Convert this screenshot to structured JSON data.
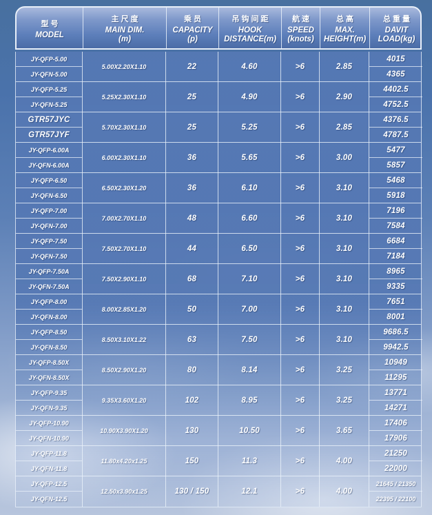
{
  "colors": {
    "header_gradient_top": "#a8b9dd",
    "header_gradient_bottom": "#4b6ca6",
    "body_cell_blue": "#5578b4",
    "grid_line": "#e9f0f9",
    "text": "#ffffff"
  },
  "table": {
    "columns": [
      {
        "zh": "型号",
        "en": [
          "MODEL"
        ]
      },
      {
        "zh": "主尺度",
        "en": [
          "MAIN DIM.",
          "(m)"
        ]
      },
      {
        "zh": "乘员",
        "en": [
          "CAPACITY",
          "(p)"
        ]
      },
      {
        "zh": "吊钩间距",
        "en": [
          "HOOK",
          "DISTANCE(m)"
        ]
      },
      {
        "zh": "航速",
        "en": [
          "SPEED",
          "(knots)"
        ]
      },
      {
        "zh": "总高",
        "en": [
          "MAX.",
          "HEIGHT(m)"
        ]
      },
      {
        "zh": "总重量",
        "en": [
          "DAVIT",
          "LOAD(kg)"
        ]
      }
    ],
    "groups": [
      {
        "models": [
          "JY-QFP-5.00",
          "JY-QFN-5.00"
        ],
        "main_dim": "5.00X2.20X1.10",
        "capacity": "22",
        "hook": "4.60",
        "speed": ">6",
        "height": "2.85",
        "loads": [
          "4015",
          "4365"
        ]
      },
      {
        "models": [
          "JY-QFP-5.25",
          "JY-QFN-5.25"
        ],
        "main_dim": "5.25X2.30X1.10",
        "capacity": "25",
        "hook": "4.90",
        "speed": ">6",
        "height": "2.90",
        "loads": [
          "4402.5",
          "4752.5"
        ]
      },
      {
        "models": [
          "GTR57JYC",
          "GTR57JYF"
        ],
        "main_dim": "5.70X2.30X1.10",
        "capacity": "25",
        "hook": "5.25",
        "speed": ">6",
        "height": "2.85",
        "loads": [
          "4376.5",
          "4787.5"
        ]
      },
      {
        "models": [
          "JY-QFP-6.00A",
          "JY-QFN-6.00A"
        ],
        "main_dim": "6.00X2.30X1.10",
        "capacity": "36",
        "hook": "5.65",
        "speed": ">6",
        "height": "3.00",
        "loads": [
          "5477",
          "5857"
        ]
      },
      {
        "models": [
          "JY-QFP-6.50",
          "JY-QFN-6.50"
        ],
        "main_dim": "6.50X2.30X1.20",
        "capacity": "36",
        "hook": "6.10",
        "speed": ">6",
        "height": "3.10",
        "loads": [
          "5468",
          "5918"
        ]
      },
      {
        "models": [
          "JY-QFP-7.00",
          "JY-QFN-7.00"
        ],
        "main_dim": "7.00X2.70X1.10",
        "capacity": "48",
        "hook": "6.60",
        "speed": ">6",
        "height": "3.10",
        "loads": [
          "7196",
          "7584"
        ]
      },
      {
        "models": [
          "JY-QFP-7.50",
          "JY-QFN-7.50"
        ],
        "main_dim": "7.50X2.70X1.10",
        "capacity": "44",
        "hook": "6.50",
        "speed": ">6",
        "height": "3.10",
        "loads": [
          "6684",
          "7184"
        ]
      },
      {
        "models": [
          "JY-QFP-7.50A",
          "JY-QFN-7.50A"
        ],
        "main_dim": "7.50X2.90X1.10",
        "capacity": "68",
        "hook": "7.10",
        "speed": ">6",
        "height": "3.10",
        "loads": [
          "8965",
          "9335"
        ]
      },
      {
        "models": [
          "JY-QFP-8.00",
          "JY-QFN-8.00"
        ],
        "main_dim": "8.00X2.85X1.20",
        "capacity": "50",
        "hook": "7.00",
        "speed": ">6",
        "height": "3.10",
        "loads": [
          "7651",
          "8001"
        ]
      },
      {
        "models": [
          "JY-QFP-8.50",
          "JY-QFN-8.50"
        ],
        "main_dim": "8.50X3.10X1.22",
        "capacity": "63",
        "hook": "7.50",
        "speed": ">6",
        "height": "3.10",
        "loads": [
          "9686.5",
          "9942.5"
        ]
      },
      {
        "models": [
          "JY-QFP-8.50X",
          "JY-QFN-8.50X"
        ],
        "main_dim": "8.50X2.90X1.20",
        "capacity": "80",
        "hook": "8.14",
        "speed": ">6",
        "height": "3.25",
        "loads": [
          "10949",
          "11295"
        ]
      },
      {
        "models": [
          "JY-QFP-9.35",
          "JY-QFN-9.35"
        ],
        "main_dim": "9.35X3.60X1.20",
        "capacity": "102",
        "hook": "8.95",
        "speed": ">6",
        "height": "3.25",
        "loads": [
          "13771",
          "14271"
        ]
      },
      {
        "models": [
          "JY-QFP-10.90",
          "JY-QFN-10.90"
        ],
        "main_dim": "10.90X3.90X1.20",
        "capacity": "130",
        "hook": "10.50",
        "speed": ">6",
        "height": "3.65",
        "loads": [
          "17406",
          "17906"
        ]
      },
      {
        "models": [
          "JY-QFP-11.8",
          "JY-QFN-11.8"
        ],
        "main_dim": "11.80x4.20x1.25",
        "capacity": "150",
        "hook": "11.3",
        "speed": ">6",
        "height": "4.00",
        "loads": [
          "21250",
          "22000"
        ]
      },
      {
        "models": [
          "JY-QFP-12.5",
          "JY-QFN-12.5"
        ],
        "main_dim": "12.50x3.90x1.25",
        "capacity": "130 / 150",
        "hook": "12.1",
        "speed": ">6",
        "height": "4.00",
        "loads": [
          "21645 / 21350",
          "22395 / 22100"
        ]
      }
    ]
  }
}
